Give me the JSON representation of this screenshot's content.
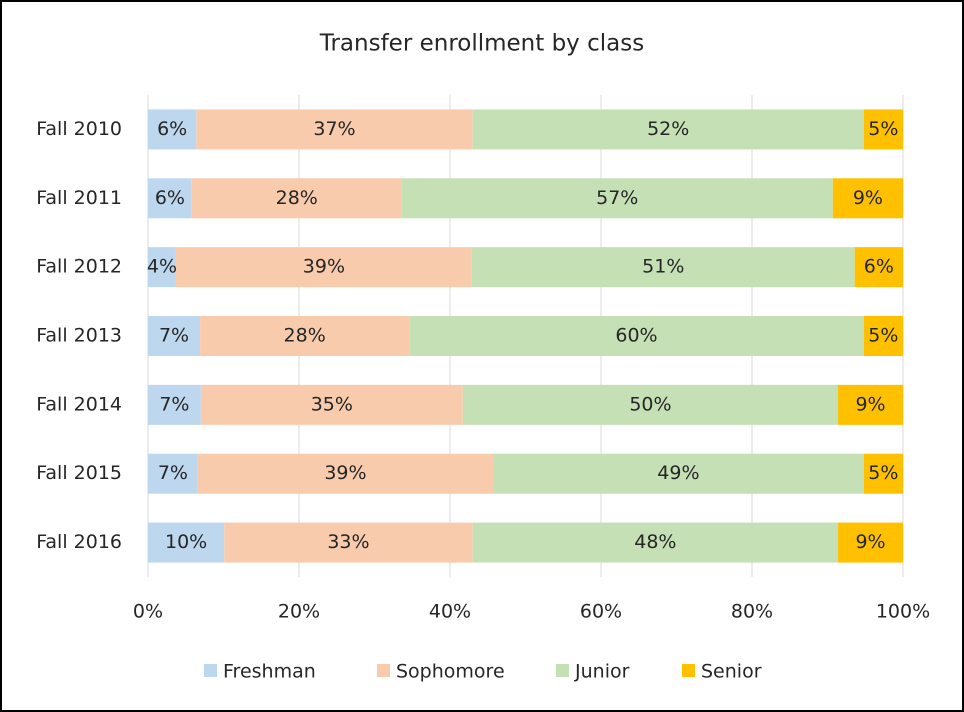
{
  "chart_data": {
    "type": "stacked-bar-horizontal",
    "title": "Transfer enrollment by class",
    "categories": [
      "Fall 2010",
      "Fall 2011",
      "Fall 2012",
      "Fall 2013",
      "Fall 2014",
      "Fall 2015",
      "Fall 2016"
    ],
    "series": [
      {
        "name": "Freshman",
        "color": "#bdd7ee",
        "values": [
          6.4,
          5.8,
          3.7,
          6.9,
          7.0,
          6.6,
          10.1
        ],
        "value_labels": [
          "6%",
          "6%",
          "4%",
          "7%",
          "7%",
          "7%",
          "10%"
        ]
      },
      {
        "name": "Sophomore",
        "color": "#f8cbad",
        "values": [
          36.6,
          27.8,
          39.2,
          27.7,
          34.7,
          39.1,
          32.9
        ],
        "value_labels": [
          "37%",
          "28%",
          "39%",
          "28%",
          "35%",
          "39%",
          "33%"
        ]
      },
      {
        "name": "Junior",
        "color": "#c5e0b4",
        "values": [
          51.8,
          57.1,
          50.7,
          60.2,
          49.7,
          49.1,
          48.4
        ],
        "value_labels": [
          "52%",
          "57%",
          "51%",
          "60%",
          "50%",
          "49%",
          "48%"
        ]
      },
      {
        "name": "Senior",
        "color": "#ffc000",
        "values": [
          5.2,
          9.3,
          6.4,
          5.2,
          8.6,
          5.2,
          8.6
        ],
        "value_labels": [
          "5%",
          "9%",
          "6%",
          "5%",
          "9%",
          "5%",
          "9%"
        ]
      }
    ],
    "xlim": [
      0,
      100
    ],
    "xticks": [
      {
        "value": 0,
        "label": "0%"
      },
      {
        "value": 20,
        "label": "20%"
      },
      {
        "value": 40,
        "label": "40%"
      },
      {
        "value": 60,
        "label": "60%"
      },
      {
        "value": 80,
        "label": "80%"
      },
      {
        "value": 100,
        "label": "100%"
      }
    ],
    "grid": true,
    "legend": "bottom"
  }
}
